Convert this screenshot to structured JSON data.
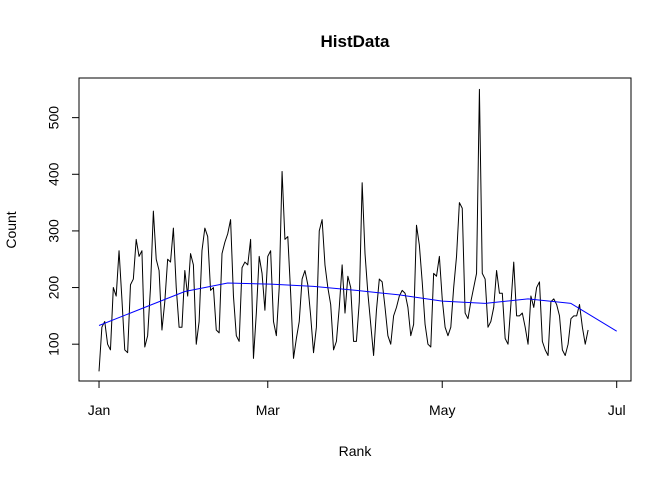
{
  "chart_data": {
    "type": "line",
    "title": "HistData",
    "xlabel": "Rank",
    "ylabel": "Count",
    "x_start": "2013-01-01",
    "x_ticks": [
      {
        "label": "Jan",
        "date": "2013-01-01"
      },
      {
        "label": "Mar",
        "date": "2013-03-01"
      },
      {
        "label": "May",
        "date": "2013-05-01"
      },
      {
        "label": "Jul",
        "date": "2013-07-01"
      }
    ],
    "y_ticks": [
      100,
      200,
      300,
      400,
      500
    ],
    "ylim": [
      35,
      570
    ],
    "xlim": [
      "2012-12-25",
      "2013-07-06"
    ],
    "grid": false,
    "series": [
      {
        "color": "#000000",
        "values": [
          52,
          130,
          140,
          100,
          90,
          200,
          185,
          265,
          180,
          90,
          85,
          205,
          215,
          285,
          255,
          265,
          95,
          115,
          200,
          335,
          250,
          230,
          125,
          175,
          250,
          245,
          305,
          200,
          130,
          130,
          230,
          185,
          260,
          240,
          100,
          140,
          265,
          305,
          290,
          195,
          200,
          125,
          120,
          260,
          280,
          295,
          320,
          185,
          115,
          105,
          235,
          245,
          240,
          285,
          75,
          155,
          255,
          225,
          160,
          255,
          265,
          140,
          115,
          200,
          405,
          285,
          290,
          190,
          75,
          110,
          140,
          215,
          230,
          205,
          150,
          85,
          130,
          300,
          320,
          240,
          200,
          170,
          90,
          105,
          165,
          240,
          155,
          220,
          200,
          105,
          105,
          175,
          385,
          260,
          190,
          135,
          80,
          160,
          215,
          210,
          165,
          115,
          100,
          150,
          165,
          185,
          195,
          190,
          165,
          115,
          135,
          310,
          275,
          210,
          135,
          100,
          95,
          225,
          220,
          255,
          180,
          130,
          115,
          130,
          200,
          255,
          350,
          340,
          155,
          145,
          175,
          200,
          225,
          550,
          225,
          215,
          130,
          140,
          165,
          230,
          190,
          190,
          110,
          100,
          170,
          245,
          150,
          150,
          155,
          130,
          100,
          185,
          165,
          200,
          210,
          105,
          90,
          80,
          175,
          180,
          170,
          150,
          90,
          80,
          100,
          145,
          150,
          150,
          170,
          130,
          100,
          125
        ]
      },
      {
        "color": "#0000ff",
        "smooth_x_days": [
          0,
          15,
          30,
          45,
          60,
          75,
          90,
          105,
          120,
          135,
          150,
          165,
          181
        ],
        "values": [
          133,
          163,
          193,
          208,
          206,
          202,
          195,
          187,
          176,
          172,
          180,
          172,
          123
        ]
      }
    ]
  }
}
